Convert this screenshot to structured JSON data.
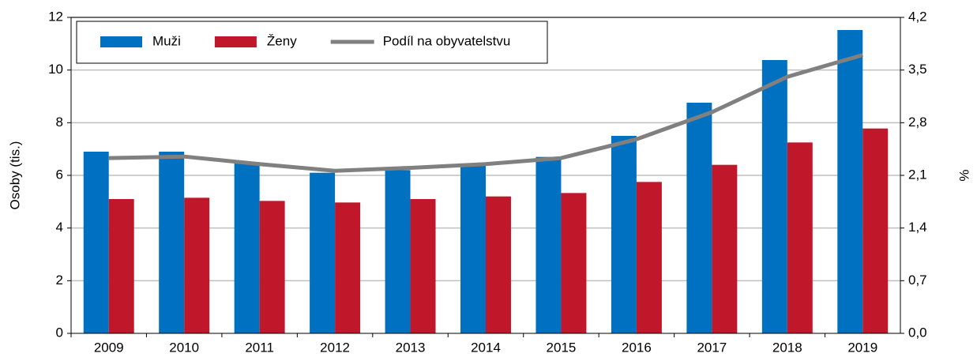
{
  "chart_data": {
    "type": "bar",
    "categories": [
      "2009",
      "2010",
      "2011",
      "2012",
      "2013",
      "2014",
      "2015",
      "2016",
      "2017",
      "2018",
      "2019"
    ],
    "series": [
      {
        "name": "Muži",
        "type": "bar",
        "color": "#0070c0",
        "values": [
          6.9,
          6.9,
          6.5,
          6.1,
          6.2,
          6.4,
          6.7,
          7.5,
          8.76,
          10.38,
          11.52
        ]
      },
      {
        "name": "Ženy",
        "type": "bar",
        "color": "#c0182a",
        "values": [
          5.1,
          5.15,
          5.03,
          4.97,
          5.1,
          5.2,
          5.33,
          5.75,
          6.4,
          7.25,
          7.78
        ]
      },
      {
        "name": "Podíl na obyvatelstvu",
        "type": "line",
        "axis": "y2",
        "color": "#808080",
        "values": [
          2.33,
          2.35,
          2.25,
          2.16,
          2.2,
          2.25,
          2.33,
          2.58,
          2.94,
          3.41,
          3.7
        ]
      }
    ],
    "ylabel": "Osoby (tis.)",
    "y2label": "%",
    "ylim": [
      0,
      12
    ],
    "yticks": [
      0,
      2,
      4,
      6,
      8,
      10,
      12
    ],
    "y2lim": [
      0,
      4.2
    ],
    "y2ticks": [
      {
        "value": 0,
        "label": "0,0"
      },
      {
        "value": 0.7,
        "label": "0,7"
      },
      {
        "value": 1.4,
        "label": "1,4"
      },
      {
        "value": 2.1,
        "label": "2,1"
      },
      {
        "value": 2.8,
        "label": "2,8"
      },
      {
        "value": 3.5,
        "label": "3,5"
      },
      {
        "value": 4.2,
        "label": "4,2"
      }
    ],
    "grid": true,
    "legend": "upper left"
  }
}
